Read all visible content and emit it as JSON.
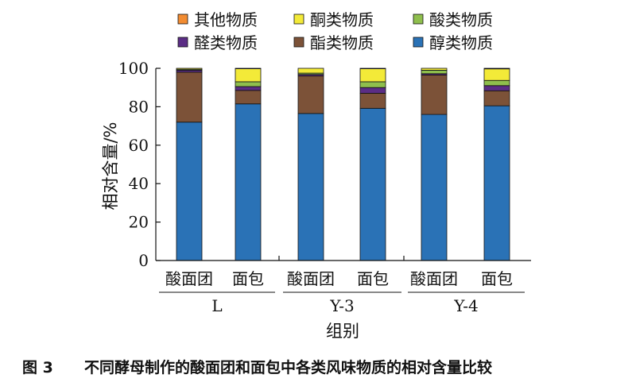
{
  "figure": {
    "number_label": "图 3",
    "caption": "不同酵母制作的酸面团和面包中各类风味物质的相对含量比较"
  },
  "chart_data": {
    "type": "bar",
    "stacked": true,
    "ylabel": "相对含量/%",
    "xlabel": "组别",
    "ylim": [
      0,
      100
    ],
    "yticks": [
      0,
      20,
      40,
      60,
      80,
      100
    ],
    "categories": [
      "酸面团",
      "面包",
      "酸面团",
      "面包",
      "酸面团",
      "面包"
    ],
    "groups": [
      {
        "label": "L",
        "members": [
          0,
          1
        ]
      },
      {
        "label": "Y-3",
        "members": [
          2,
          3
        ]
      },
      {
        "label": "Y-4",
        "members": [
          4,
          5
        ]
      }
    ],
    "series": [
      {
        "name": "醇类物质",
        "color": "#2a72b6",
        "values": [
          72.0,
          81.5,
          76.5,
          79.2,
          76.0,
          80.5
        ]
      },
      {
        "name": "酯类物质",
        "color": "#7c5238",
        "values": [
          26.0,
          7.0,
          19.5,
          7.8,
          20.5,
          7.8
        ]
      },
      {
        "name": "醛类物质",
        "color": "#5b2d85",
        "values": [
          1.0,
          2.0,
          0.8,
          3.0,
          0.7,
          2.7
        ]
      },
      {
        "name": "酸类物质",
        "color": "#8fbf4d",
        "values": [
          0.5,
          2.5,
          0.7,
          3.0,
          1.8,
          2.7
        ]
      },
      {
        "name": "酮类物质",
        "color": "#f3ea38",
        "values": [
          0.5,
          6.8,
          2.5,
          6.8,
          1.0,
          6.0
        ]
      },
      {
        "name": "其他物质",
        "color": "#f28c32",
        "values": [
          0,
          0.2,
          0,
          0.2,
          0,
          0.3
        ]
      }
    ],
    "legend": {
      "placement": "top",
      "order": [
        "其他物质",
        "酮类物质",
        "酸类物质",
        "醛类物质",
        "酯类物质",
        "醇类物质"
      ]
    },
    "grid": false
  }
}
